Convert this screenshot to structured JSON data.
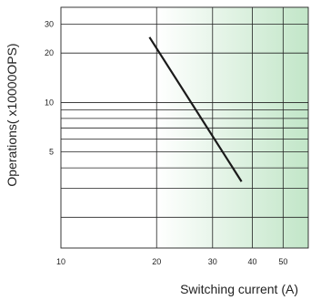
{
  "chart_data": {
    "type": "line",
    "title": "",
    "xlabel": "Switching current (A)",
    "ylabel": "Operations( x10000OPS)",
    "x_scale": "log",
    "y_scale": "log",
    "xlim": [
      10,
      60
    ],
    "ylim": [
      1.3,
      38
    ],
    "x_ticks": [
      10,
      20,
      30,
      40,
      50
    ],
    "y_ticks": [
      5,
      10,
      20,
      30
    ],
    "grid": true,
    "series": [
      {
        "x": [
          19,
          37
        ],
        "y": [
          25,
          3.3
        ]
      }
    ],
    "colors": {
      "line": "#1a1a1a",
      "grid": "#222222",
      "gradient_start": "#ffffff",
      "gradient_end": "#c2e6c8"
    }
  }
}
